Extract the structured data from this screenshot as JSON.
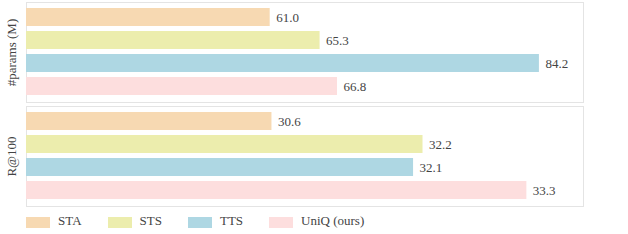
{
  "chart_data": [
    {
      "type": "bar",
      "orientation": "horizontal",
      "y_label": "#params (M)",
      "categories": [
        "STA",
        "STS",
        "TTS",
        "UniQ (ours)"
      ],
      "values": [
        61.0,
        65.3,
        84.2,
        66.8
      ],
      "value_labels": [
        "61.0",
        "65.3",
        "84.2",
        "66.8"
      ],
      "colors": [
        "#f7d9b2",
        "#ecedad",
        "#aed7e3",
        "#fddede"
      ],
      "xlim": [
        40,
        88
      ],
      "data_labels": true,
      "tick_labels": false
    },
    {
      "type": "bar",
      "orientation": "horizontal",
      "y_label": "R@100",
      "categories": [
        "STA",
        "STS",
        "TTS",
        "UniQ (ours)"
      ],
      "values": [
        30.6,
        32.2,
        32.1,
        33.3
      ],
      "colors": [
        "#f7d9b2",
        "#ecedad",
        "#aed7e3",
        "#fddede"
      ],
      "xlim": [
        28.0,
        33.9
      ],
      "data_labels": true,
      "tick_labels": false,
      "legend": "bottom"
    }
  ]
}
